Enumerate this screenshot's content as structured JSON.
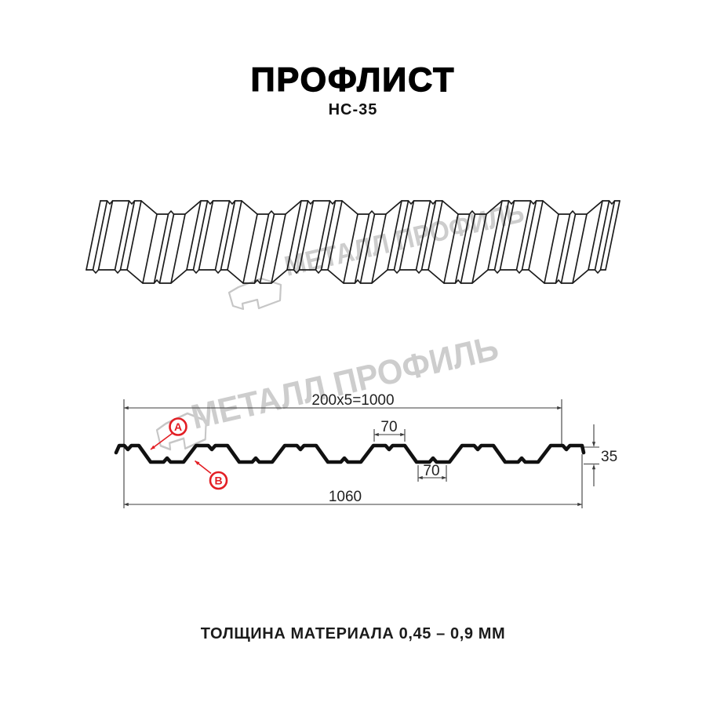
{
  "header": {
    "title": "ПРОФЛИСТ",
    "subtitle": "НС-35"
  },
  "watermark": {
    "text": "МЕТАЛЛ ПРОФИЛЬ"
  },
  "dimensions": {
    "top_span": "200x5=1000",
    "crest_width": "70",
    "valley_width": "70",
    "height": "35",
    "total_width": "1060"
  },
  "markers": {
    "a": "A",
    "b": "B"
  },
  "footer": {
    "text": "ТОЛЩИНА МАТЕРИАЛА 0,45 – 0,9 ММ"
  },
  "colors": {
    "accent_red": "#e31e24",
    "drawing_line": "#1b1b1b",
    "watermark_gray": "#cdcdcd"
  }
}
